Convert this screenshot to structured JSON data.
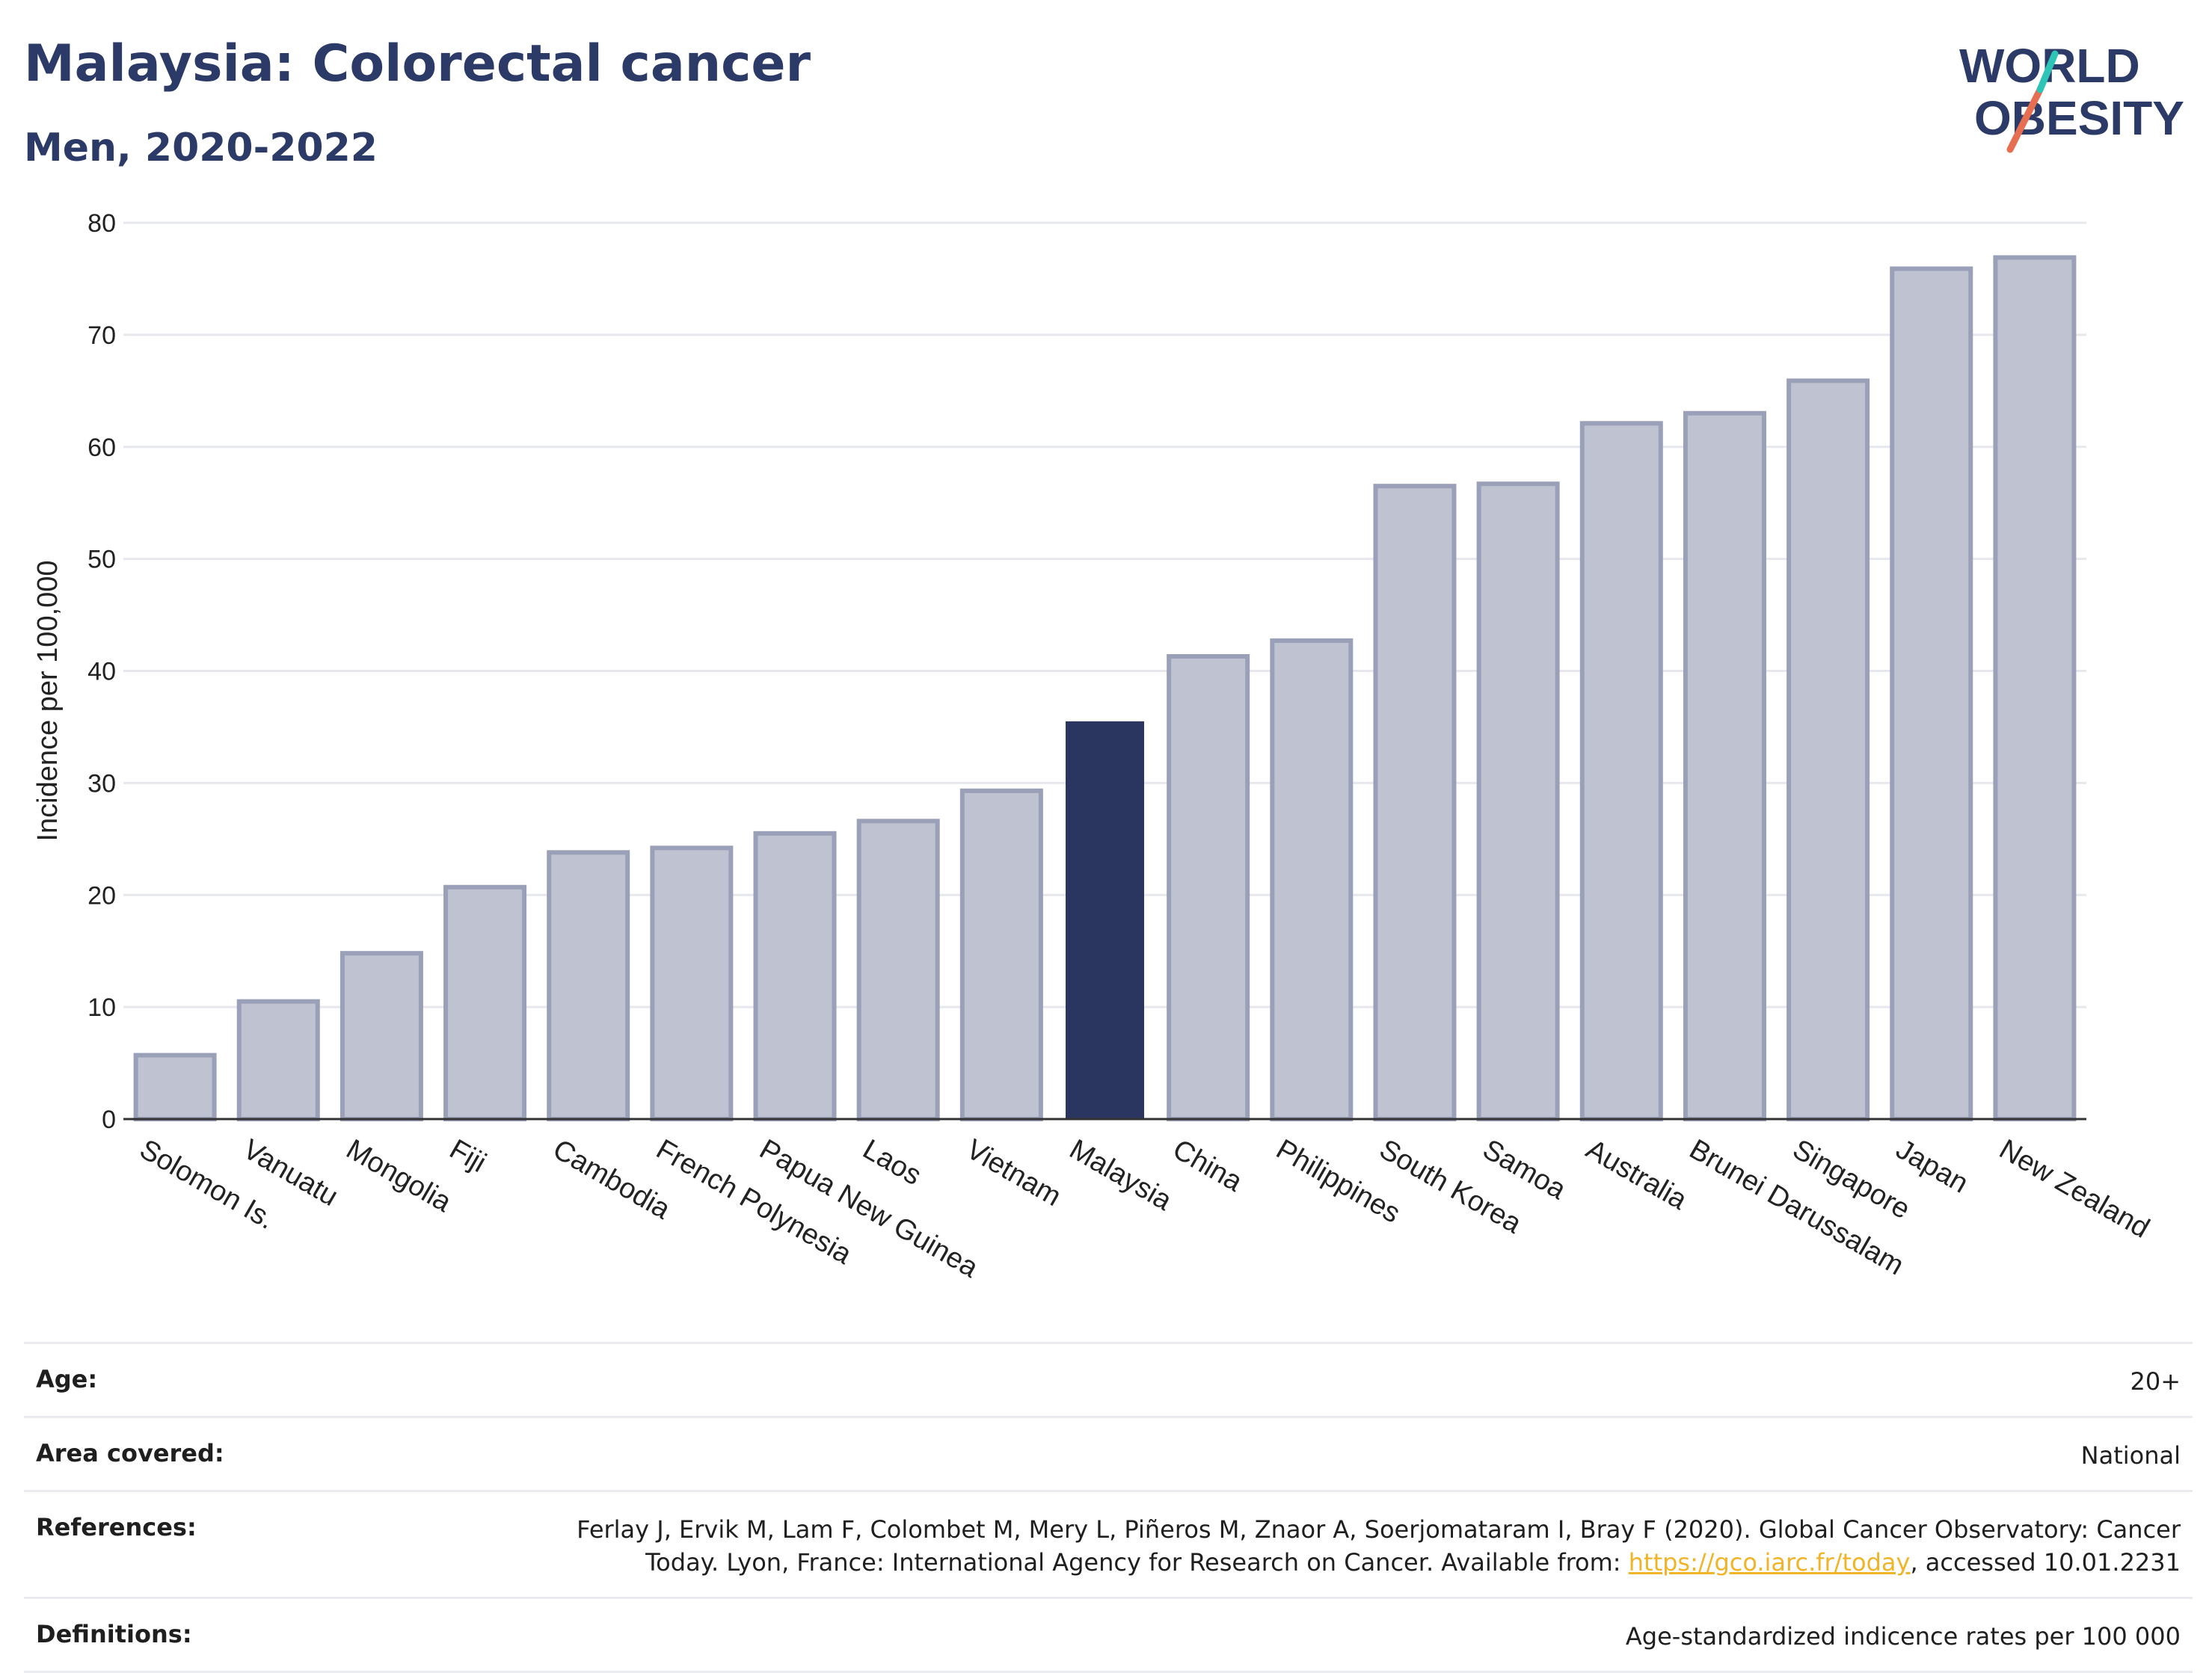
{
  "header": {
    "title": "Malaysia: Colorectal cancer",
    "subtitle": "Men, 2020-2022"
  },
  "logo": {
    "line1": "WORLD",
    "line2": "OBESITY",
    "accent_teal": "#2ec4b6",
    "accent_red": "#e76f51",
    "text_color": "#2b3a67"
  },
  "chart_data": {
    "type": "bar",
    "ylabel": "Incidence per 100,000",
    "xlabel": "",
    "ylim": [
      0,
      80
    ],
    "yticks": [
      0,
      10,
      20,
      30,
      40,
      50,
      60,
      70,
      80
    ],
    "grid": true,
    "highlight": "Malaysia",
    "colors": {
      "bar": "#bfc3d1",
      "bar_border": "#9aa0b8",
      "highlight": "#2b3660",
      "grid": "#e6e8ee",
      "axis": "#333333"
    },
    "categories": [
      "Solomon Is.",
      "Vanuatu",
      "Mongolia",
      "Fiji",
      "Cambodia",
      "French Polynesia",
      "Papua New Guinea",
      "Laos",
      "Vietnam",
      "Malaysia",
      "China",
      "Philippines",
      "South Korea",
      "Samoa",
      "Australia",
      "Brunei Darussalam",
      "Singapore",
      "Japan",
      "New Zealand"
    ],
    "values": [
      5.7,
      10.5,
      14.8,
      20.7,
      23.8,
      24.2,
      25.5,
      26.6,
      29.3,
      35.5,
      41.3,
      42.7,
      56.5,
      56.7,
      62.1,
      63.0,
      65.9,
      75.9,
      76.9
    ]
  },
  "meta": {
    "age_label": "Age:",
    "age_value": "20+",
    "area_label": "Area covered:",
    "area_value": "National",
    "references_label": "References:",
    "references_text_1": "Ferlay J, Ervik M, Lam F, Colombet M, Mery L, Piñeros M, Znaor A, Soerjomataram I, Bray F (2020). Global Cancer Observatory: Cancer Today. Lyon, France: International Agency for Research on Cancer. Available from: ",
    "references_link": "https://gco.iarc.fr/today",
    "references_text_2": ", accessed 10.01.2231",
    "definitions_label": "Definitions:",
    "definitions_value": "Age-standardized indicence rates per 100 000"
  }
}
